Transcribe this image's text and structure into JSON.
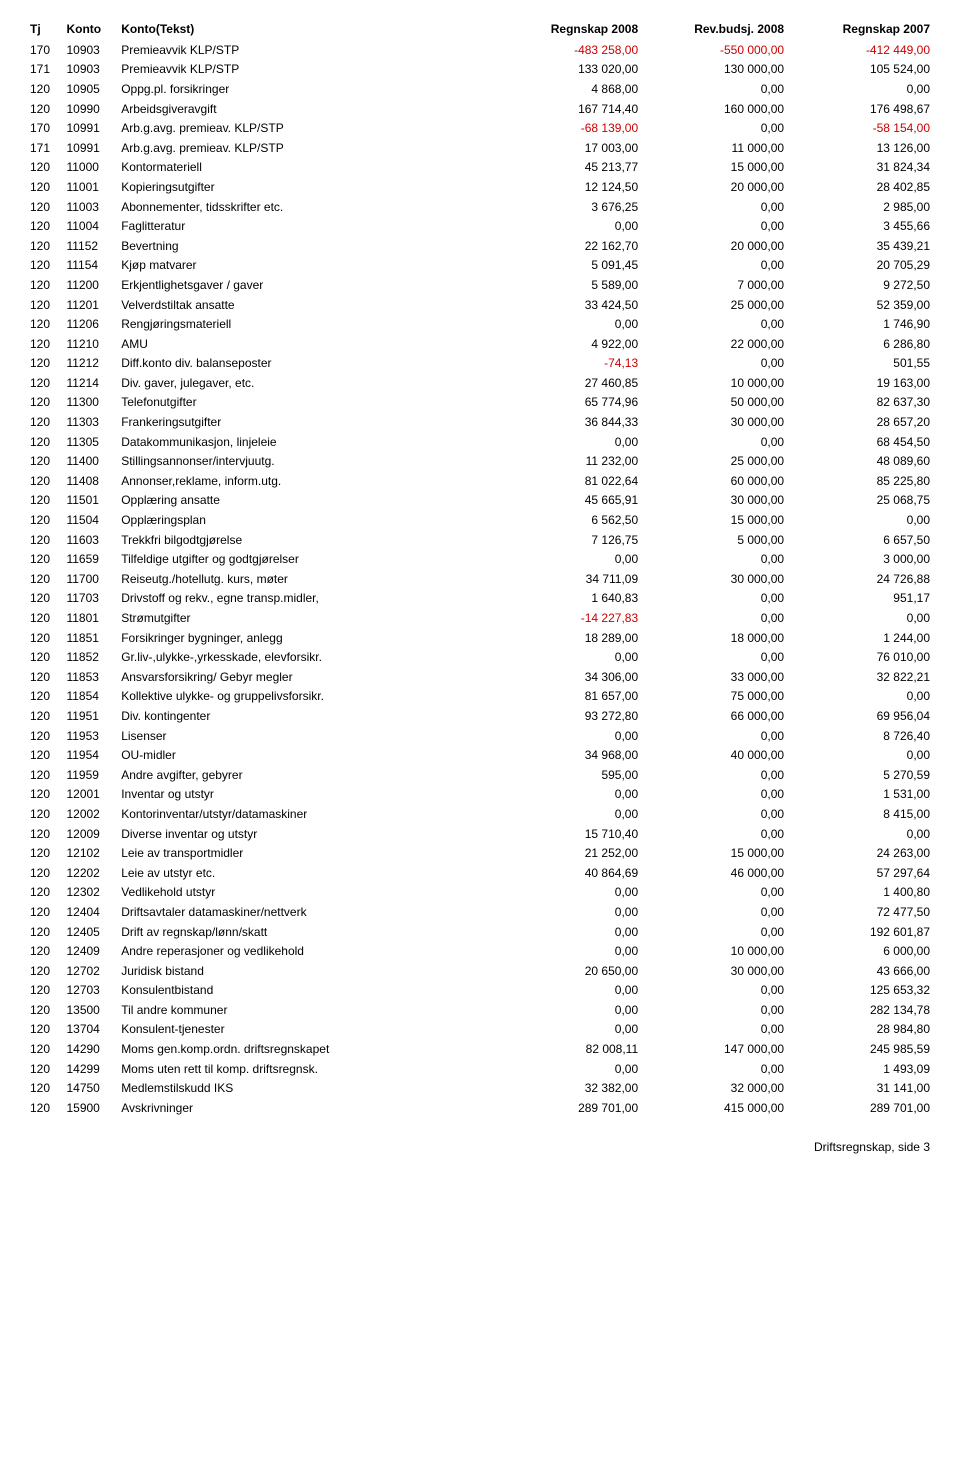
{
  "headers": {
    "tj": "Tj",
    "konto": "Konto",
    "kontoTekst": "Konto(Tekst)",
    "regnskap2008": "Regnskap 2008",
    "revBudsj2008": "Rev.budsj. 2008",
    "regnskap2007": "Regnskap 2007"
  },
  "rows": [
    {
      "tj": "170",
      "konto": "10903",
      "tekst": "Premieavvik KLP/STP",
      "r08": "-483 258,00",
      "rb": "-550 000,00",
      "r07": "-412 449,00"
    },
    {
      "tj": "171",
      "konto": "10903",
      "tekst": "Premieavvik KLP/STP",
      "r08": "133 020,00",
      "rb": "130 000,00",
      "r07": "105 524,00"
    },
    {
      "tj": "120",
      "konto": "10905",
      "tekst": "Oppg.pl. forsikringer",
      "r08": "4 868,00",
      "rb": "0,00",
      "r07": "0,00"
    },
    {
      "tj": "120",
      "konto": "10990",
      "tekst": "Arbeidsgiveravgift",
      "r08": "167 714,40",
      "rb": "160 000,00",
      "r07": "176 498,67"
    },
    {
      "tj": "170",
      "konto": "10991",
      "tekst": "Arb.g.avg. premieav. KLP/STP",
      "r08": "-68 139,00",
      "rb": "0,00",
      "r07": "-58 154,00"
    },
    {
      "tj": "171",
      "konto": "10991",
      "tekst": "Arb.g.avg. premieav. KLP/STP",
      "r08": "17 003,00",
      "rb": "11 000,00",
      "r07": "13 126,00"
    },
    {
      "tj": "120",
      "konto": "11000",
      "tekst": "Kontormateriell",
      "r08": "45 213,77",
      "rb": "15 000,00",
      "r07": "31 824,34"
    },
    {
      "tj": "120",
      "konto": "11001",
      "tekst": "Kopieringsutgifter",
      "r08": "12 124,50",
      "rb": "20 000,00",
      "r07": "28 402,85"
    },
    {
      "tj": "120",
      "konto": "11003",
      "tekst": "Abonnementer, tidsskrifter etc.",
      "r08": "3 676,25",
      "rb": "0,00",
      "r07": "2 985,00"
    },
    {
      "tj": "120",
      "konto": "11004",
      "tekst": "Faglitteratur",
      "r08": "0,00",
      "rb": "0,00",
      "r07": "3 455,66"
    },
    {
      "tj": "120",
      "konto": "11152",
      "tekst": "Bevertning",
      "r08": "22 162,70",
      "rb": "20 000,00",
      "r07": "35 439,21"
    },
    {
      "tj": "120",
      "konto": "11154",
      "tekst": "Kjøp matvarer",
      "r08": "5 091,45",
      "rb": "0,00",
      "r07": "20 705,29"
    },
    {
      "tj": "120",
      "konto": "11200",
      "tekst": "Erkjentlighetsgaver / gaver",
      "r08": "5 589,00",
      "rb": "7 000,00",
      "r07": "9 272,50"
    },
    {
      "tj": "120",
      "konto": "11201",
      "tekst": "Velverdstiltak ansatte",
      "r08": "33 424,50",
      "rb": "25 000,00",
      "r07": "52 359,00"
    },
    {
      "tj": "120",
      "konto": "11206",
      "tekst": "Rengjøringsmateriell",
      "r08": "0,00",
      "rb": "0,00",
      "r07": "1 746,90"
    },
    {
      "tj": "120",
      "konto": "11210",
      "tekst": "AMU",
      "r08": "4 922,00",
      "rb": "22 000,00",
      "r07": "6 286,80"
    },
    {
      "tj": "120",
      "konto": "11212",
      "tekst": "Diff.konto div. balanseposter",
      "r08": "-74,13",
      "rb": "0,00",
      "r07": "501,55"
    },
    {
      "tj": "120",
      "konto": "11214",
      "tekst": "Div. gaver, julegaver, etc.",
      "r08": "27 460,85",
      "rb": "10 000,00",
      "r07": "19 163,00"
    },
    {
      "tj": "120",
      "konto": "11300",
      "tekst": "Telefonutgifter",
      "r08": "65 774,96",
      "rb": "50 000,00",
      "r07": "82 637,30"
    },
    {
      "tj": "120",
      "konto": "11303",
      "tekst": "Frankeringsutgifter",
      "r08": "36 844,33",
      "rb": "30 000,00",
      "r07": "28 657,20"
    },
    {
      "tj": "120",
      "konto": "11305",
      "tekst": "Datakommunikasjon, linjeleie",
      "r08": "0,00",
      "rb": "0,00",
      "r07": "68 454,50"
    },
    {
      "tj": "120",
      "konto": "11400",
      "tekst": "Stillingsannonser/intervjuutg.",
      "r08": "11 232,00",
      "rb": "25 000,00",
      "r07": "48 089,60"
    },
    {
      "tj": "120",
      "konto": "11408",
      "tekst": "Annonser,reklame, inform.utg.",
      "r08": "81 022,64",
      "rb": "60 000,00",
      "r07": "85 225,80"
    },
    {
      "tj": "120",
      "konto": "11501",
      "tekst": "Opplæring ansatte",
      "r08": "45 665,91",
      "rb": "30 000,00",
      "r07": "25 068,75"
    },
    {
      "tj": "120",
      "konto": "11504",
      "tekst": "Opplæringsplan",
      "r08": "6 562,50",
      "rb": "15 000,00",
      "r07": "0,00"
    },
    {
      "tj": "120",
      "konto": "11603",
      "tekst": "Trekkfri bilgodtgjørelse",
      "r08": "7 126,75",
      "rb": "5 000,00",
      "r07": "6 657,50"
    },
    {
      "tj": "120",
      "konto": "11659",
      "tekst": "Tilfeldige utgifter og godtgjørelser",
      "r08": "0,00",
      "rb": "0,00",
      "r07": "3 000,00"
    },
    {
      "tj": "120",
      "konto": "11700",
      "tekst": "Reiseutg./hotellutg. kurs, møter",
      "r08": "34 711,09",
      "rb": "30 000,00",
      "r07": "24 726,88"
    },
    {
      "tj": "120",
      "konto": "11703",
      "tekst": "Drivstoff og rekv., egne transp.midler,",
      "r08": "1 640,83",
      "rb": "0,00",
      "r07": "951,17"
    },
    {
      "tj": "120",
      "konto": "11801",
      "tekst": "Strømutgifter",
      "r08": "-14 227,83",
      "rb": "0,00",
      "r07": "0,00"
    },
    {
      "tj": "120",
      "konto": "11851",
      "tekst": "Forsikringer bygninger, anlegg",
      "r08": "18 289,00",
      "rb": "18 000,00",
      "r07": "1 244,00"
    },
    {
      "tj": "120",
      "konto": "11852",
      "tekst": "Gr.liv-,ulykke-,yrkesskade, elevforsikr.",
      "r08": "0,00",
      "rb": "0,00",
      "r07": "76 010,00"
    },
    {
      "tj": "120",
      "konto": "11853",
      "tekst": "Ansvarsforsikring/ Gebyr megler",
      "r08": "34 306,00",
      "rb": "33 000,00",
      "r07": "32 822,21"
    },
    {
      "tj": "120",
      "konto": "11854",
      "tekst": "Kollektive ulykke- og gruppelivsforsikr.",
      "r08": "81 657,00",
      "rb": "75 000,00",
      "r07": "0,00"
    },
    {
      "tj": "120",
      "konto": "11951",
      "tekst": "Div. kontingenter",
      "r08": "93 272,80",
      "rb": "66 000,00",
      "r07": "69 956,04"
    },
    {
      "tj": "120",
      "konto": "11953",
      "tekst": "Lisenser",
      "r08": "0,00",
      "rb": "0,00",
      "r07": "8 726,40"
    },
    {
      "tj": "120",
      "konto": "11954",
      "tekst": "OU-midler",
      "r08": "34 968,00",
      "rb": "40 000,00",
      "r07": "0,00"
    },
    {
      "tj": "120",
      "konto": "11959",
      "tekst": "Andre avgifter, gebyrer",
      "r08": "595,00",
      "rb": "0,00",
      "r07": "5 270,59"
    },
    {
      "tj": "120",
      "konto": "12001",
      "tekst": "Inventar og utstyr",
      "r08": "0,00",
      "rb": "0,00",
      "r07": "1 531,00"
    },
    {
      "tj": "120",
      "konto": "12002",
      "tekst": "Kontorinventar/utstyr/datamaskiner",
      "r08": "0,00",
      "rb": "0,00",
      "r07": "8 415,00"
    },
    {
      "tj": "120",
      "konto": "12009",
      "tekst": "Diverse inventar og utstyr",
      "r08": "15 710,40",
      "rb": "0,00",
      "r07": "0,00"
    },
    {
      "tj": "120",
      "konto": "12102",
      "tekst": "Leie av transportmidler",
      "r08": "21 252,00",
      "rb": "15 000,00",
      "r07": "24 263,00"
    },
    {
      "tj": "120",
      "konto": "12202",
      "tekst": "Leie av utstyr etc.",
      "r08": "40 864,69",
      "rb": "46 000,00",
      "r07": "57 297,64"
    },
    {
      "tj": "120",
      "konto": "12302",
      "tekst": "Vedlikehold utstyr",
      "r08": "0,00",
      "rb": "0,00",
      "r07": "1 400,80"
    },
    {
      "tj": "120",
      "konto": "12404",
      "tekst": "Driftsavtaler datamaskiner/nettverk",
      "r08": "0,00",
      "rb": "0,00",
      "r07": "72 477,50"
    },
    {
      "tj": "120",
      "konto": "12405",
      "tekst": "Drift av regnskap/lønn/skatt",
      "r08": "0,00",
      "rb": "0,00",
      "r07": "192 601,87"
    },
    {
      "tj": "120",
      "konto": "12409",
      "tekst": "Andre reperasjoner og vedlikehold",
      "r08": "0,00",
      "rb": "10 000,00",
      "r07": "6 000,00"
    },
    {
      "tj": "120",
      "konto": "12702",
      "tekst": "Juridisk bistand",
      "r08": "20 650,00",
      "rb": "30 000,00",
      "r07": "43 666,00"
    },
    {
      "tj": "120",
      "konto": "12703",
      "tekst": "Konsulentbistand",
      "r08": "0,00",
      "rb": "0,00",
      "r07": "125 653,32"
    },
    {
      "tj": "120",
      "konto": "13500",
      "tekst": "Til andre kommuner",
      "r08": "0,00",
      "rb": "0,00",
      "r07": "282 134,78"
    },
    {
      "tj": "120",
      "konto": "13704",
      "tekst": "Konsulent-tjenester",
      "r08": "0,00",
      "rb": "0,00",
      "r07": "28 984,80"
    },
    {
      "tj": "120",
      "konto": "14290",
      "tekst": "Moms gen.komp.ordn. driftsregnskapet",
      "r08": "82 008,11",
      "rb": "147 000,00",
      "r07": "245 985,59"
    },
    {
      "tj": "120",
      "konto": "14299",
      "tekst": "Moms uten rett til komp. driftsregnsk.",
      "r08": "0,00",
      "rb": "0,00",
      "r07": "1 493,09"
    },
    {
      "tj": "120",
      "konto": "14750",
      "tekst": "Medlemstilskudd IKS",
      "r08": "32 382,00",
      "rb": "32 000,00",
      "r07": "31 141,00"
    },
    {
      "tj": "120",
      "konto": "15900",
      "tekst": "Avskrivninger",
      "r08": "289 701,00",
      "rb": "415 000,00",
      "r07": "289 701,00"
    }
  ],
  "footer": "Driftsregnskap, side 3"
}
